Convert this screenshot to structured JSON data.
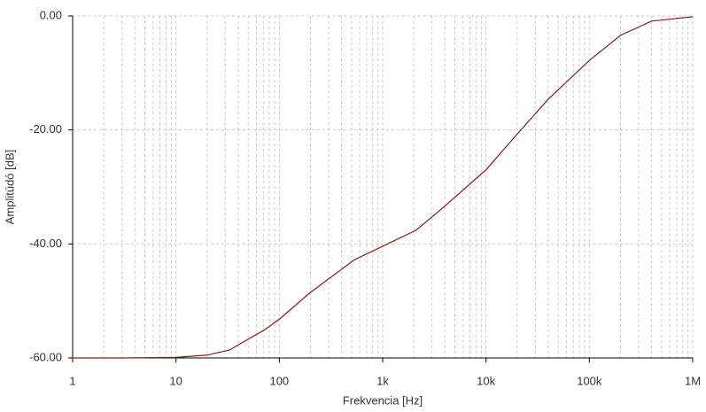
{
  "chart_data": {
    "type": "line",
    "x_label": "Frekvencia [Hz]",
    "y_label": "Amplitúdó [dB]",
    "x_log": true,
    "grid": true,
    "x": [
      1,
      3,
      10,
      20,
      33,
      50,
      73,
      100,
      200,
      530,
      1000,
      2100,
      3800,
      10000,
      19000,
      40000,
      100000,
      200000,
      400000,
      1000000
    ],
    "series": [
      {
        "color": "#8b1a1a",
        "values": [
          -60,
          -60,
          -59.9,
          -59.5,
          -58.6,
          -56.7,
          -55,
          -53.2,
          -48.5,
          -42.8,
          -40.4,
          -37.6,
          -33.7,
          -27,
          -21.2,
          -14.6,
          -7.8,
          -3.4,
          -0.9,
          -0.15
        ]
      }
    ],
    "xlim": [
      1,
      1000000
    ],
    "xticks": [
      1,
      10,
      100,
      {
        "value": 1000,
        "label": "1k"
      },
      {
        "value": 10000,
        "label": "10k"
      },
      {
        "value": 100000,
        "label": "100k"
      },
      {
        "value": 1000000,
        "label": "1M"
      }
    ],
    "ylim": [
      -60,
      0
    ],
    "yticks": [
      {
        "value": 0,
        "label": "0.00"
      },
      {
        "value": -20,
        "label": "-20.00"
      },
      {
        "value": -40,
        "label": "-40.00"
      },
      {
        "value": -60,
        "label": "-60.00"
      }
    ]
  }
}
